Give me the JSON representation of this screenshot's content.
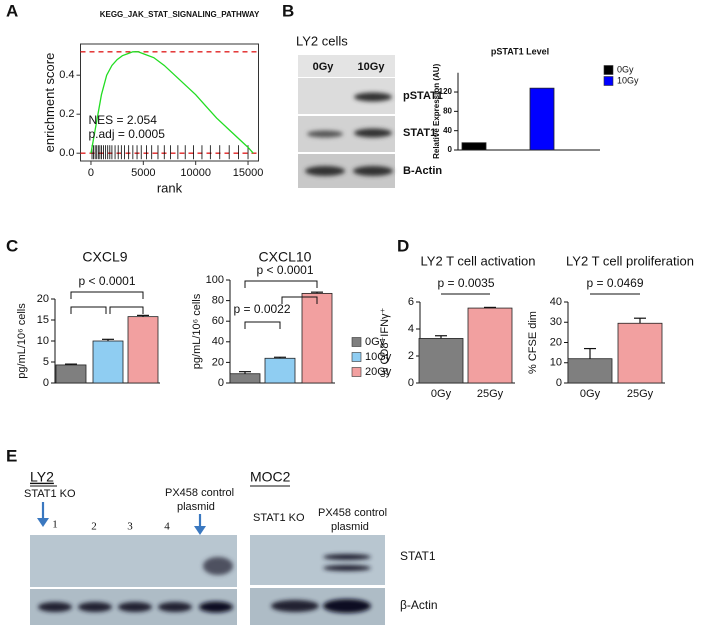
{
  "panel_labels": [
    "A",
    "B",
    "C",
    "D",
    "E"
  ],
  "chart_data": [
    {
      "type": "line",
      "title": "KEGG_JAK_STAT_SIGNALING_PATHWAY",
      "x_label": "rank",
      "y_label": "enrichment score",
      "x": [
        0,
        500,
        1000,
        1500,
        2000,
        2500,
        3000,
        3500,
        4000,
        4500,
        5000,
        6000,
        7000,
        8000,
        9000,
        10000,
        11000,
        12000,
        13000,
        14000,
        15000,
        15500
      ],
      "values": [
        0,
        0.15,
        0.3,
        0.4,
        0.45,
        0.48,
        0.5,
        0.51,
        0.52,
        0.52,
        0.51,
        0.49,
        0.45,
        0.4,
        0.35,
        0.3,
        0.24,
        0.18,
        0.13,
        0.08,
        0.03,
        0
      ],
      "color": "#22dd22",
      "hits": [
        100,
        250,
        400,
        550,
        700,
        850,
        1000,
        1200,
        1400,
        1600,
        1800,
        2000,
        2300,
        2600,
        2900,
        3200,
        3600,
        4000,
        4400,
        4800,
        5300,
        5800,
        6400,
        7000,
        7600,
        8300,
        9000,
        9800,
        10600,
        11400,
        12300,
        13200,
        14100,
        15000
      ],
      "xlim": [
        -1000,
        16000
      ],
      "xticks": [
        0,
        5000,
        10000,
        15000
      ],
      "ylim": [
        -0.04,
        0.56
      ],
      "yticks": [
        {
          "value": 0,
          "label": "0.0"
        },
        0.2,
        0.4
      ],
      "annotations": [
        "NES = 2.054",
        "p.adj = 0.0005"
      ]
    },
    {
      "type": "bar",
      "title": "pSTAT1 Level",
      "y_label": "Relative Expression (AU)",
      "values": [
        15,
        128
      ],
      "colors": [
        "#000000",
        "#0000ff"
      ],
      "legend": [
        "0Gy",
        "10Gy"
      ],
      "ylim": [
        0,
        160
      ],
      "yticks": [
        0,
        40,
        80,
        120
      ]
    },
    {
      "type": "bar",
      "title": "CXCL9",
      "y_label": "pg/mL/10⁶ cells",
      "values": [
        4.3,
        10,
        15.8
      ],
      "errors": [
        0.2,
        0.4,
        0.3
      ],
      "colors": [
        "#7f7f7f",
        "#8fcdf2",
        "#f2a0a0"
      ],
      "ylim": [
        0,
        20
      ],
      "yticks": [
        0,
        5,
        10,
        15,
        20
      ],
      "annotations": [
        "p < 0.0001"
      ]
    },
    {
      "type": "bar",
      "title": "CXCL10",
      "y_label": "pg/mL/10⁶ cells",
      "values": [
        9,
        24,
        87
      ],
      "errors": [
        2,
        1,
        1.2
      ],
      "colors": [
        "#7f7f7f",
        "#8fcdf2",
        "#f2a0a0"
      ],
      "legend": [
        "0Gy",
        "10Gy",
        "20Gy"
      ],
      "ylim": [
        0,
        100
      ],
      "yticks": [
        0,
        20,
        40,
        60,
        80,
        100
      ],
      "annotations": [
        "p < 0.0001",
        "p = 0.0022"
      ]
    },
    {
      "type": "bar",
      "title": "LY2 T cell activation",
      "y_label": "% CD8⁺IFNγ⁺",
      "categories": [
        "0Gy",
        "25Gy"
      ],
      "values": [
        3.3,
        5.55
      ],
      "errors": [
        0.2,
        0.05
      ],
      "colors": [
        "#7f7f7f",
        "#f2a0a0"
      ],
      "ylim": [
        0,
        6
      ],
      "yticks": [
        0,
        2,
        4,
        6
      ],
      "annotations": [
        "p = 0.0035"
      ]
    },
    {
      "type": "bar",
      "title": "LY2 T cell proliferation",
      "y_label": "% CFSE dim",
      "categories": [
        "0Gy",
        "25Gy"
      ],
      "values": [
        12,
        29.5
      ],
      "errors": [
        5,
        2.5
      ],
      "colors": [
        "#7f7f7f",
        "#f2a0a0"
      ],
      "ylim": [
        0,
        40
      ],
      "yticks": [
        0,
        10,
        20,
        30,
        40
      ],
      "annotations": [
        "p = 0.0469"
      ]
    }
  ],
  "blots": {
    "b": {
      "title": "LY2 cells",
      "lanes": [
        "0Gy",
        "10Gy"
      ],
      "rows": [
        "pSTAT1",
        "STAT1",
        "B-Actin"
      ]
    },
    "e_left": {
      "title": "LY2",
      "ko": "STAT1 KO",
      "control": [
        "PX458 control",
        "plasmid"
      ],
      "lanes": [
        "1",
        "2",
        "3",
        "4"
      ]
    },
    "e_right": {
      "title": "MOC2",
      "ko": "STAT1 KO",
      "control": [
        "PX458 control",
        "plasmid"
      ],
      "rows": [
        "STAT1",
        "β-Actin"
      ]
    }
  }
}
